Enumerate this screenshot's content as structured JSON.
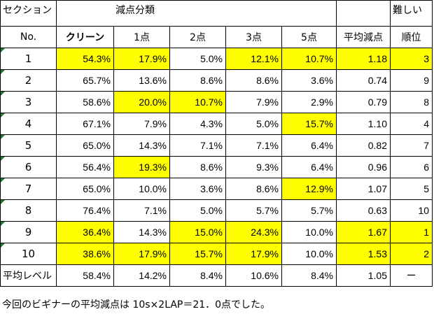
{
  "header": {
    "section": "セクション",
    "group": "減点分類",
    "difficulty_top": "難しい",
    "no": "No.",
    "columns": [
      "クリーン",
      "1点",
      "2点",
      "3点",
      "5点",
      "平均減点",
      "順位"
    ]
  },
  "rows": [
    {
      "no": "1",
      "clean": "54.3%",
      "p1": "17.9%",
      "p2": "5.0%",
      "p3": "12.1%",
      "p5": "10.7%",
      "avg": "1.18",
      "rank": "3"
    },
    {
      "no": "2",
      "clean": "65.7%",
      "p1": "13.6%",
      "p2": "8.6%",
      "p3": "8.6%",
      "p5": "3.6%",
      "avg": "0.74",
      "rank": "9"
    },
    {
      "no": "3",
      "clean": "58.6%",
      "p1": "20.0%",
      "p2": "10.7%",
      "p3": "7.9%",
      "p5": "2.9%",
      "avg": "0.79",
      "rank": "8"
    },
    {
      "no": "4",
      "clean": "67.1%",
      "p1": "7.9%",
      "p2": "4.3%",
      "p3": "5.0%",
      "p5": "15.7%",
      "avg": "1.10",
      "rank": "4"
    },
    {
      "no": "5",
      "clean": "65.0%",
      "p1": "14.3%",
      "p2": "7.1%",
      "p3": "7.1%",
      "p5": "6.4%",
      "avg": "0.82",
      "rank": "7"
    },
    {
      "no": "6",
      "clean": "56.4%",
      "p1": "19.3%",
      "p2": "8.6%",
      "p3": "9.3%",
      "p5": "6.4%",
      "avg": "0.96",
      "rank": "6"
    },
    {
      "no": "7",
      "clean": "65.0%",
      "p1": "10.0%",
      "p2": "3.6%",
      "p3": "8.6%",
      "p5": "12.9%",
      "avg": "1.07",
      "rank": "5"
    },
    {
      "no": "8",
      "clean": "76.4%",
      "p1": "7.1%",
      "p2": "5.0%",
      "p3": "5.7%",
      "p5": "5.7%",
      "avg": "0.63",
      "rank": "10"
    },
    {
      "no": "9",
      "clean": "36.4%",
      "p1": "14.3%",
      "p2": "15.0%",
      "p3": "24.3%",
      "p5": "10.0%",
      "avg": "1.67",
      "rank": "1"
    },
    {
      "no": "10",
      "clean": "38.6%",
      "p1": "17.9%",
      "p2": "15.7%",
      "p3": "17.9%",
      "p5": "10.0%",
      "avg": "1.53",
      "rank": "2"
    }
  ],
  "average_row": {
    "label": "平均レベル",
    "clean": "58.4%",
    "p1": "14.2%",
    "p2": "8.4%",
    "p3": "10.6%",
    "p5": "8.4%",
    "avg": "1.05",
    "rank": "ー"
  },
  "footer": "今回のビギナーの平均減点は 10s×2LAP＝21．0点でした。",
  "colors": {
    "highlight": "#ffff00",
    "corner_marker": "#1e7b34"
  }
}
